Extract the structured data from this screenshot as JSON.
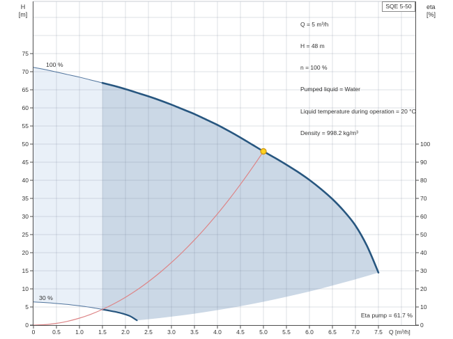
{
  "model_label": "SQE 5-50",
  "info_box": {
    "lines": [
      "Q = 5 m³/h",
      "H = 48 m",
      "n = 100 %",
      "Pumped liquid = Water",
      "Liquid temperature during operation = 20 °C",
      "Density = 998.2 kg/m³"
    ]
  },
  "labels": {
    "curve_100": "100 %",
    "curve_30": "30 %",
    "eta_pump": "Eta pump = 61.7 %"
  },
  "colors": {
    "navy_thick": "#27567f",
    "navy_thin": "#4f739c",
    "red_curve": "#dd8486",
    "light_fill": "#e9f0f8",
    "dark_fill": "#cbd8e6",
    "grid": "rgba(105,120,140,0.22)",
    "axis": "#4d4d4d",
    "tick_text": "#333333",
    "marker_fill": "#ffd21e",
    "marker_stroke": "#cf9a1b",
    "frame": "#c8cdd3"
  },
  "chart_data": {
    "type": "line",
    "title": "SQE 5-50 pump performance curve",
    "xlabel": "Q [m³/h]",
    "ylabel_left": "H [m]",
    "ylabel_right": "eta [%]",
    "x_range": [
      0,
      8.3
    ],
    "y_left_range": [
      0,
      89.4
    ],
    "y_right_range": [
      0,
      178.8
    ],
    "grid": {
      "x_values": [
        0.5,
        1,
        1.5,
        2,
        2.5,
        3,
        3.5,
        4,
        4.5,
        5,
        5.5,
        6,
        6.5,
        7,
        7.5,
        8
      ],
      "y_values": [
        5,
        10,
        15,
        20,
        25,
        30,
        35,
        40,
        45,
        50,
        55,
        60,
        65,
        70,
        75,
        80,
        85
      ]
    },
    "axes": {
      "bottom": {
        "ticks": [
          {
            "v": 0,
            "l": "0"
          },
          {
            "v": 0.5,
            "l": "0.5"
          },
          {
            "v": 1,
            "l": "1.0"
          },
          {
            "v": 1.5,
            "l": "1.5"
          },
          {
            "v": 2,
            "l": "2.0"
          },
          {
            "v": 2.5,
            "l": "2.5"
          },
          {
            "v": 3,
            "l": "3.0"
          },
          {
            "v": 3.5,
            "l": "3.5"
          },
          {
            "v": 4,
            "l": "4.0"
          },
          {
            "v": 4.5,
            "l": "4.5"
          },
          {
            "v": 5,
            "l": "5.0"
          },
          {
            "v": 5.5,
            "l": "5.5"
          },
          {
            "v": 6,
            "l": "6.0"
          },
          {
            "v": 6.5,
            "l": "6.5"
          },
          {
            "v": 7,
            "l": "7.0"
          },
          {
            "v": 7.5,
            "l": "7.5"
          }
        ]
      },
      "left": {
        "ticks": [
          {
            "v": 0,
            "l": "0"
          },
          {
            "v": 5,
            "l": "5"
          },
          {
            "v": 10,
            "l": "10"
          },
          {
            "v": 15,
            "l": "15"
          },
          {
            "v": 20,
            "l": "20"
          },
          {
            "v": 25,
            "l": "25"
          },
          {
            "v": 30,
            "l": "30"
          },
          {
            "v": 35,
            "l": "35"
          },
          {
            "v": 40,
            "l": "40"
          },
          {
            "v": 45,
            "l": "45"
          },
          {
            "v": 50,
            "l": "50"
          },
          {
            "v": 55,
            "l": "55"
          },
          {
            "v": 60,
            "l": "60"
          },
          {
            "v": 65,
            "l": "65"
          },
          {
            "v": 70,
            "l": "70"
          },
          {
            "v": 75,
            "l": "75"
          }
        ]
      },
      "right": {
        "ticks": [
          {
            "v": 0,
            "l": "0"
          },
          {
            "v": 10,
            "l": "10"
          },
          {
            "v": 20,
            "l": "20"
          },
          {
            "v": 30,
            "l": "30"
          },
          {
            "v": 40,
            "l": "40"
          },
          {
            "v": 50,
            "l": "50"
          },
          {
            "v": 60,
            "l": "60"
          },
          {
            "v": 70,
            "l": "70"
          },
          {
            "v": 80,
            "l": "80"
          },
          {
            "v": 90,
            "l": "90"
          },
          {
            "v": 100,
            "l": "100"
          }
        ]
      }
    },
    "series": [
      {
        "name": "pump-curve-100-thin",
        "color": "navy_thin",
        "width": 1,
        "points": [
          [
            0,
            71.2
          ],
          [
            0.25,
            70.6
          ],
          [
            0.5,
            69.9
          ],
          [
            0.75,
            69.2
          ],
          [
            1,
            68.5
          ],
          [
            1.25,
            67.7
          ],
          [
            1.5,
            66.9
          ]
        ]
      },
      {
        "name": "pump-curve-100-thick",
        "color": "navy_thick",
        "width": 2.6,
        "points": [
          [
            1.5,
            66.9
          ],
          [
            1.75,
            66.1
          ],
          [
            2,
            65.2
          ],
          [
            2.25,
            64.2
          ],
          [
            2.5,
            63.2
          ],
          [
            2.75,
            62.1
          ],
          [
            3,
            60.9
          ],
          [
            3.25,
            59.6
          ],
          [
            3.5,
            58.3
          ],
          [
            3.75,
            56.8
          ],
          [
            4,
            55.3
          ],
          [
            4.25,
            53.6
          ],
          [
            4.5,
            51.8
          ],
          [
            4.75,
            49.9
          ],
          [
            5,
            48
          ],
          [
            5.25,
            46.2
          ],
          [
            5.5,
            44.3
          ],
          [
            5.75,
            42.3
          ],
          [
            6,
            40.1
          ],
          [
            6.25,
            37.6
          ],
          [
            6.5,
            34.8
          ],
          [
            6.75,
            31.5
          ],
          [
            7,
            27.5
          ],
          [
            7.25,
            21.9
          ],
          [
            7.5,
            14.5
          ]
        ]
      },
      {
        "name": "pump-curve-30-thin",
        "color": "navy_thin",
        "width": 1,
        "points": [
          [
            0,
            6.41
          ],
          [
            0.15,
            6.29
          ],
          [
            0.3,
            6.17
          ],
          [
            0.45,
            6.02
          ],
          [
            0.6,
            5.87
          ],
          [
            0.75,
            5.69
          ],
          [
            0.9,
            5.48
          ],
          [
            1.05,
            5.25
          ],
          [
            1.2,
            4.98
          ],
          [
            1.35,
            4.66
          ],
          [
            1.5,
            4.32
          ]
        ]
      },
      {
        "name": "pump-curve-30-thick",
        "color": "navy_thick",
        "width": 2.2,
        "points": [
          [
            1.5,
            4.32
          ],
          [
            1.65,
            3.99
          ],
          [
            1.8,
            3.61
          ],
          [
            1.95,
            3.13
          ],
          [
            2.1,
            2.48
          ],
          [
            2.25,
            1.31
          ]
        ]
      },
      {
        "name": "system-curve",
        "color": "red_curve",
        "width": 1.2,
        "points": [
          [
            0,
            0
          ],
          [
            0.25,
            0.12
          ],
          [
            0.5,
            0.48
          ],
          [
            0.75,
            1.08
          ],
          [
            1,
            1.92
          ],
          [
            1.25,
            3
          ],
          [
            1.5,
            4.32
          ],
          [
            1.75,
            5.88
          ],
          [
            2,
            7.68
          ],
          [
            2.25,
            9.72
          ],
          [
            2.5,
            12
          ],
          [
            2.75,
            14.52
          ],
          [
            3,
            17.28
          ],
          [
            3.25,
            20.28
          ],
          [
            3.5,
            23.52
          ],
          [
            3.75,
            27
          ],
          [
            4,
            30.72
          ],
          [
            4.25,
            34.68
          ],
          [
            4.5,
            38.88
          ],
          [
            4.75,
            43.32
          ],
          [
            5,
            48
          ]
        ]
      },
      {
        "name": "max-flow-boundary",
        "color": null,
        "width": 0,
        "points": [
          [
            2.25,
            1.31
          ],
          [
            2.5,
            1.61
          ],
          [
            2.75,
            1.95
          ],
          [
            3,
            2.32
          ],
          [
            3.25,
            2.72
          ],
          [
            3.5,
            3.16
          ],
          [
            3.75,
            3.63
          ],
          [
            4,
            4.13
          ],
          [
            4.25,
            4.66
          ],
          [
            4.5,
            5.22
          ],
          [
            4.75,
            5.82
          ],
          [
            5,
            6.45
          ],
          [
            5.25,
            7.11
          ],
          [
            5.5,
            7.81
          ],
          [
            5.75,
            8.53
          ],
          [
            6,
            9.29
          ],
          [
            6.25,
            10.08
          ],
          [
            6.5,
            10.9
          ],
          [
            6.75,
            11.76
          ],
          [
            7,
            12.64
          ],
          [
            7.25,
            13.56
          ],
          [
            7.5,
            14.5
          ]
        ]
      }
    ],
    "regions": [
      {
        "name": "speed-range-low-flow-region",
        "fill": "light_fill",
        "parts": [
          {
            "series": "pump-curve-100-thin"
          },
          {
            "series": "pump-curve-30-thin",
            "reverse": true
          }
        ]
      },
      {
        "name": "operating-range-region",
        "fill": "dark_fill",
        "parts": [
          {
            "series": "pump-curve-100-thick"
          },
          {
            "series": "max-flow-boundary",
            "reverse": true
          },
          {
            "series": "pump-curve-30-thick",
            "reverse": true
          }
        ]
      }
    ],
    "duty_point": {
      "q": 5,
      "h": 48,
      "eta_pump_pct": 61.7
    }
  }
}
